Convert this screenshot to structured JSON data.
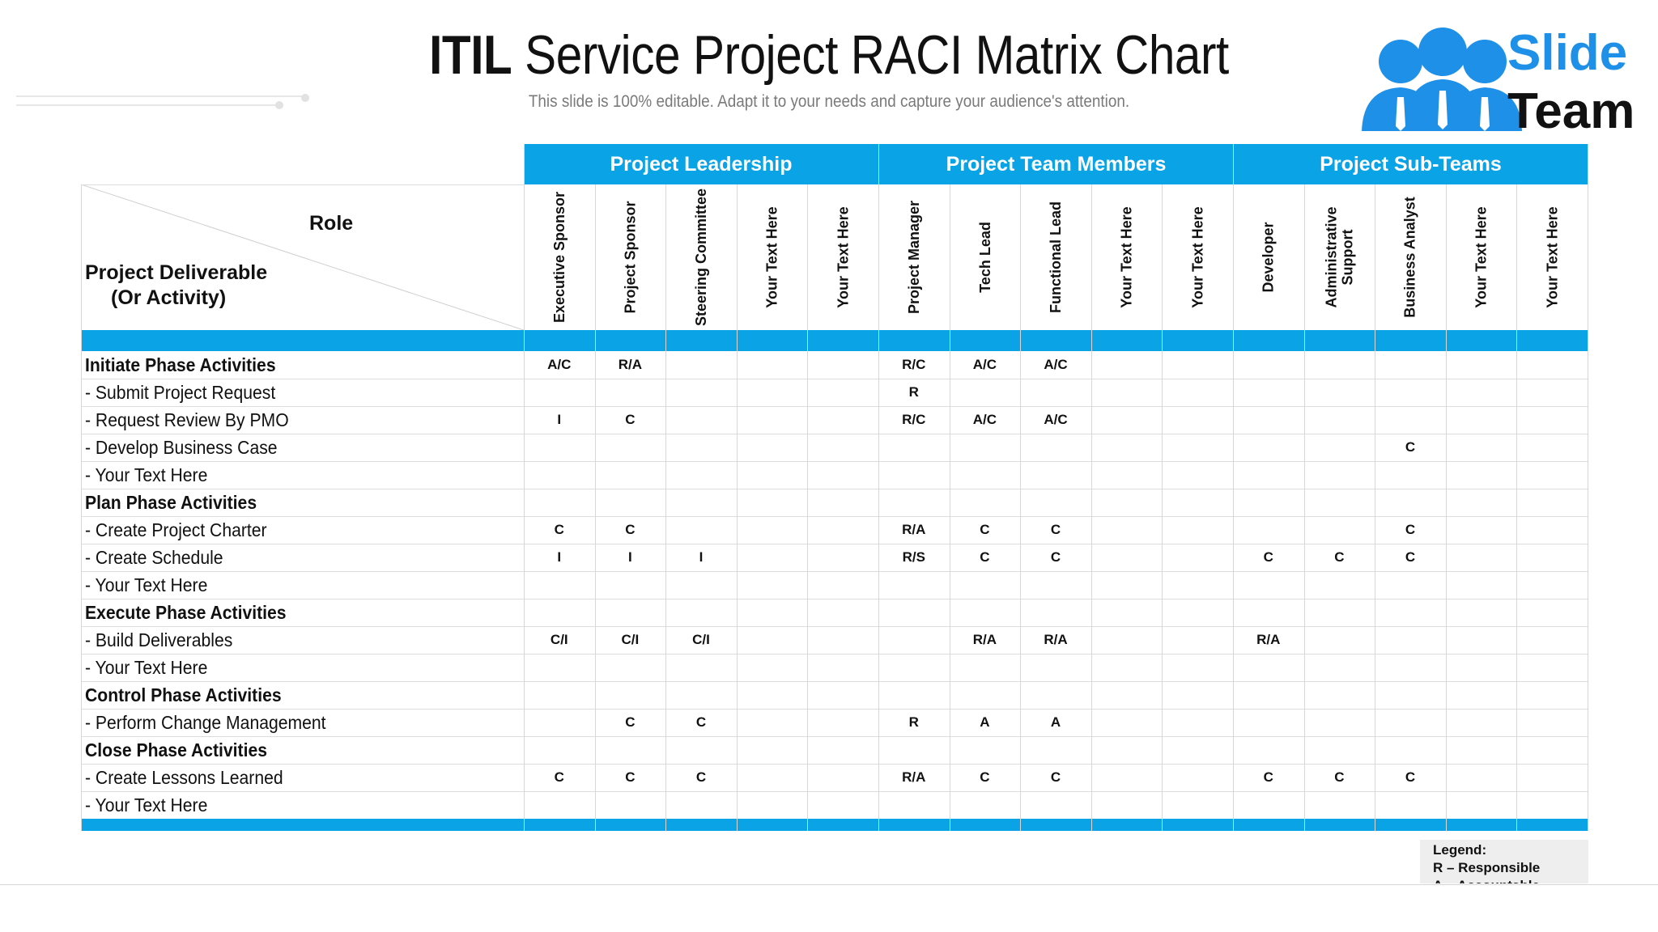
{
  "header": {
    "title_bold": "ITIL",
    "title_rest": " Service Project RACI Matrix Chart",
    "subtitle": "This slide is 100% editable. Adapt it to your needs and capture your audience's attention."
  },
  "logo": {
    "word1": "Slide",
    "word2": "Team",
    "icon": "people-group-icon",
    "brand_color": "#1e90e8"
  },
  "colors": {
    "accent": "#0aa3e6",
    "grid": "#d7d7d7",
    "legend_bg": "#eeeeee"
  },
  "corner": {
    "role": "Role",
    "deliverable_line1": "Project Deliverable",
    "deliverable_line2": "(Or Activity)"
  },
  "groups": [
    "Project Leadership",
    "Project Team Members",
    "Project Sub-Teams"
  ],
  "roles": [
    [
      "Executive Sponsor"
    ],
    [
      "Project Sponsor"
    ],
    [
      "Steering Committee"
    ],
    [
      "Your Text Here"
    ],
    [
      "Your Text Here"
    ],
    [
      "Project Manager"
    ],
    [
      "Tech Lead"
    ],
    [
      "Functional Lead"
    ],
    [
      "Your Text Here"
    ],
    [
      "Your Text Here"
    ],
    [
      "Developer"
    ],
    [
      "Administrative",
      "Support"
    ],
    [
      "Business Analyst"
    ],
    [
      "Your Text Here"
    ],
    [
      "Your Text Here"
    ]
  ],
  "rows": [
    {
      "label": "Initiate Phase Activities",
      "section": true,
      "values": [
        "A/C",
        "R/A",
        "",
        "",
        "",
        "R/C",
        "A/C",
        "A/C",
        "",
        "",
        "",
        "",
        "",
        "",
        ""
      ]
    },
    {
      "label": "- Submit Project Request",
      "section": false,
      "values": [
        "",
        "",
        "",
        "",
        "",
        "R",
        "",
        "",
        "",
        "",
        "",
        "",
        "",
        "",
        ""
      ]
    },
    {
      "label": "- Request Review By PMO",
      "section": false,
      "values": [
        "I",
        "C",
        "",
        "",
        "",
        "R/C",
        "A/C",
        "A/C",
        "",
        "",
        "",
        "",
        "",
        "",
        ""
      ]
    },
    {
      "label": "- Develop Business Case",
      "section": false,
      "values": [
        "",
        "",
        "",
        "",
        "",
        "",
        "",
        "",
        "",
        "",
        "",
        "",
        "C",
        "",
        ""
      ]
    },
    {
      "label": "- Your Text Here",
      "section": false,
      "values": [
        "",
        "",
        "",
        "",
        "",
        "",
        "",
        "",
        "",
        "",
        "",
        "",
        "",
        "",
        ""
      ]
    },
    {
      "label": "Plan Phase Activities",
      "section": true,
      "values": [
        "",
        "",
        "",
        "",
        "",
        "",
        "",
        "",
        "",
        "",
        "",
        "",
        "",
        "",
        ""
      ]
    },
    {
      "label": "- Create Project Charter",
      "section": false,
      "values": [
        "C",
        "C",
        "",
        "",
        "",
        "R/A",
        "C",
        "C",
        "",
        "",
        "",
        "",
        "C",
        "",
        ""
      ]
    },
    {
      "label": "- Create Schedule",
      "section": false,
      "values": [
        "I",
        "I",
        "I",
        "",
        "",
        "R/S",
        "C",
        "C",
        "",
        "",
        "C",
        "C",
        "C",
        "",
        ""
      ]
    },
    {
      "label": "- Your Text Here",
      "section": false,
      "values": [
        "",
        "",
        "",
        "",
        "",
        "",
        "",
        "",
        "",
        "",
        "",
        "",
        "",
        "",
        ""
      ]
    },
    {
      "label": "Execute Phase Activities",
      "section": true,
      "values": [
        "",
        "",
        "",
        "",
        "",
        "",
        "",
        "",
        "",
        "",
        "",
        "",
        "",
        "",
        ""
      ]
    },
    {
      "label": "- Build Deliverables",
      "section": false,
      "values": [
        "C/I",
        "C/I",
        "C/I",
        "",
        "",
        "",
        "R/A",
        "R/A",
        "",
        "",
        "R/A",
        "",
        "",
        "",
        ""
      ]
    },
    {
      "label": "- Your Text Here",
      "section": false,
      "values": [
        "",
        "",
        "",
        "",
        "",
        "",
        "",
        "",
        "",
        "",
        "",
        "",
        "",
        "",
        ""
      ]
    },
    {
      "label": "Control Phase Activities",
      "section": true,
      "values": [
        "",
        "",
        "",
        "",
        "",
        "",
        "",
        "",
        "",
        "",
        "",
        "",
        "",
        "",
        ""
      ]
    },
    {
      "label": "- Perform Change Management",
      "section": false,
      "values": [
        "",
        "C",
        "C",
        "",
        "",
        "R",
        "A",
        "A",
        "",
        "",
        "",
        "",
        "",
        "",
        ""
      ]
    },
    {
      "label": "Close Phase Activities",
      "section": true,
      "values": [
        "",
        "",
        "",
        "",
        "",
        "",
        "",
        "",
        "",
        "",
        "",
        "",
        "",
        "",
        ""
      ]
    },
    {
      "label": "- Create Lessons Learned",
      "section": false,
      "values": [
        "C",
        "C",
        "C",
        "",
        "",
        "R/A",
        "C",
        "C",
        "",
        "",
        "C",
        "C",
        "C",
        "",
        ""
      ]
    },
    {
      "label": "- Your Text Here",
      "section": false,
      "values": [
        "",
        "",
        "",
        "",
        "",
        "",
        "",
        "",
        "",
        "",
        "",
        "",
        "",
        "",
        ""
      ]
    }
  ],
  "legend": {
    "title": "Legend:",
    "items": [
      "R – Responsible",
      "A – Accountable"
    ]
  }
}
